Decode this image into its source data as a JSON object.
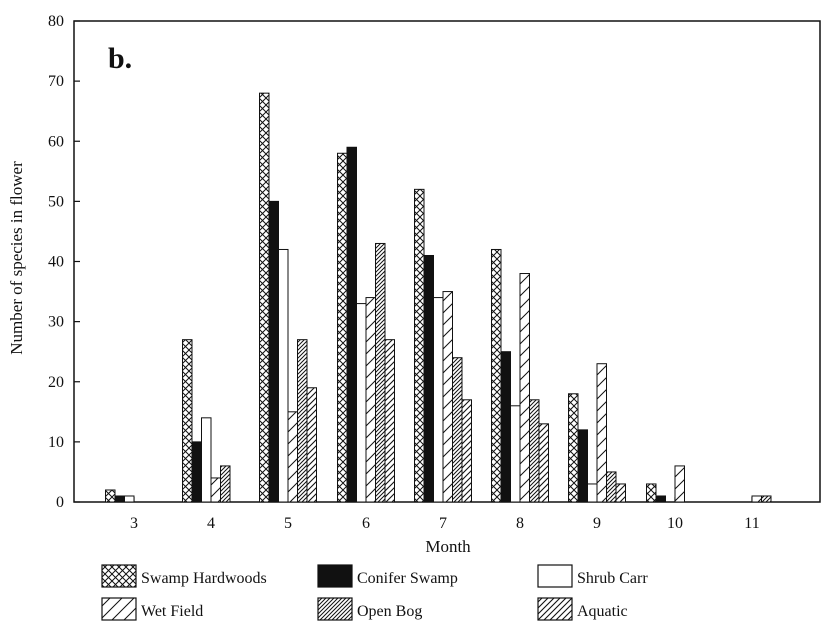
{
  "chart_data": {
    "type": "bar",
    "panel_label": "b.",
    "xlabel": "Month",
    "ylabel": "Number of species in flower",
    "ylim": [
      0,
      80
    ],
    "yticks": [
      "0",
      "10",
      "20",
      "30",
      "40",
      "50",
      "60",
      "70",
      "80"
    ],
    "categories": [
      "3",
      "4",
      "5",
      "6",
      "7",
      "8",
      "9",
      "10",
      "11"
    ],
    "series": [
      {
        "name": "Swamp Hardwoods",
        "pattern": "crosshatch",
        "values": [
          2,
          27,
          68,
          58,
          52,
          42,
          18,
          3,
          0
        ]
      },
      {
        "name": "Conifer Swamp",
        "pattern": "solid",
        "values": [
          1,
          10,
          50,
          59,
          41,
          25,
          12,
          1,
          0
        ]
      },
      {
        "name": "Shrub Carr",
        "pattern": "empty",
        "values": [
          1,
          14,
          42,
          33,
          34,
          16,
          3,
          0,
          0
        ]
      },
      {
        "name": "Wet Field",
        "pattern": "sparse-diagonal",
        "values": [
          0,
          4,
          15,
          34,
          35,
          38,
          23,
          6,
          1
        ]
      },
      {
        "name": "Open Bog",
        "pattern": "dense-diagonal",
        "values": [
          0,
          6,
          27,
          43,
          24,
          17,
          5,
          0,
          1
        ]
      },
      {
        "name": "Aquatic",
        "pattern": "medium-diagonal",
        "values": [
          0,
          0,
          19,
          27,
          17,
          13,
          3,
          0,
          0
        ]
      }
    ],
    "grid": false,
    "legend_position": "bottom"
  }
}
